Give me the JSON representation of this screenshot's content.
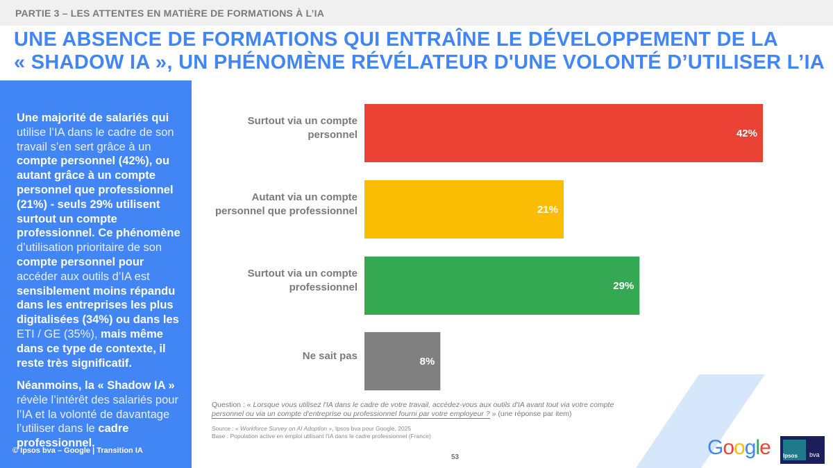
{
  "header": {
    "section": "PARTIE 3 – LES ATTENTES EN MATIÈRE DE FORMATIONS À L’IA",
    "title_lines": [
      "UNE ABSENCE DE FORMATIONS QUI ENTRAÎNE LE DÉVELOPPEMENT DE LA",
      "« SHADOW IA », UN PHÉNOMÈNE RÉVÉLATEUR D'UNE VOLONTÉ D’UTILISER L’IA"
    ]
  },
  "sidebar": {
    "paragraph1": [
      {
        "text": "Une majorité de salariés qui ",
        "bold": true
      },
      {
        "text": "utilise l’IA dans le cadre de son travail s’en sert grâce à un ",
        "bold": false
      },
      {
        "text": "compte personnel (42%), ou autant grâce à un compte personnel que professionnel (21%) - seuls 29% utilisent surtout un compte professionnel. Ce phénomène ",
        "bold": true
      },
      {
        "text": "d’utilisation prioritaire de son ",
        "bold": false
      },
      {
        "text": "compte personnel pour ",
        "bold": true
      },
      {
        "text": "accéder aux outils d’IA est ",
        "bold": false
      },
      {
        "text": "sensiblement moins répandu dans les entreprises les plus digitalisées (34%) ou dans les ",
        "bold": true
      },
      {
        "text": "ETI / GE (35%), ",
        "bold": false
      },
      {
        "text": "mais même dans ce type de contexte, il reste très significatif.",
        "bold": true
      }
    ],
    "paragraph2": [
      {
        "text": "Néanmoins, la « Shadow IA » ",
        "bold": true
      },
      {
        "text": "révèle l’intérêt des salariés pour l’IA et la volonté de davantage l’utiliser dans le ",
        "bold": false
      },
      {
        "text": "cadre professionnel.",
        "bold": true
      }
    ],
    "copyright": "© Ipsos bva – Google | Transition IA"
  },
  "chart_data": {
    "type": "bar",
    "orientation": "horizontal",
    "categories": [
      [
        "Surtout via un compte",
        "personnel"
      ],
      [
        "Autant via un compte",
        "personnel que professionnel"
      ],
      [
        "Surtout via un compte",
        "professionnel"
      ],
      [
        "Ne sait pas"
      ]
    ],
    "values": [
      42,
      21,
      29,
      8
    ],
    "value_labels": [
      "42%",
      "21%",
      "29%",
      "8%"
    ],
    "colors": [
      "#ea4335",
      "#fbbc04",
      "#34a853",
      "#808080"
    ],
    "unit": "%",
    "xlim": [
      0,
      42
    ],
    "grid": false,
    "axes_visible": false,
    "title": "",
    "xlabel": "",
    "ylabel": ""
  },
  "footer": {
    "question_prefix": "Question : « ",
    "question_italic_1": "Lorsque vous utilisez l'IA dans le cadre de votre travail, accédez-vous aux outils d'IA avant tout via votre compte ",
    "question_italic_2": "personnel ou via un compte d'entreprise ou professionnel fourni par votre employeur ?",
    "question_suffix": " » (une réponse par item)",
    "source_prefix": "Source : « ",
    "source_italic": "Workforce Survey on AI Adoption",
    "source_suffix": " », Ipsos bva pour Google, 2025",
    "base": "Base : Population active en emploi utilisant l'IA dans le cadre professionnel (France)",
    "page_number": "53"
  },
  "logos": {
    "google_letters": [
      {
        "ch": "G",
        "color": "#4285f4"
      },
      {
        "ch": "o",
        "color": "#ea4335"
      },
      {
        "ch": "o",
        "color": "#fbbc04"
      },
      {
        "ch": "g",
        "color": "#4285f4"
      },
      {
        "ch": "l",
        "color": "#34a853"
      },
      {
        "ch": "e",
        "color": "#ea4335"
      }
    ],
    "ipsos": "Ipsos",
    "bva": "bva"
  },
  "colors": {
    "brand_blue": "#4285f4",
    "decor_stripe": "#d6e6fb"
  }
}
